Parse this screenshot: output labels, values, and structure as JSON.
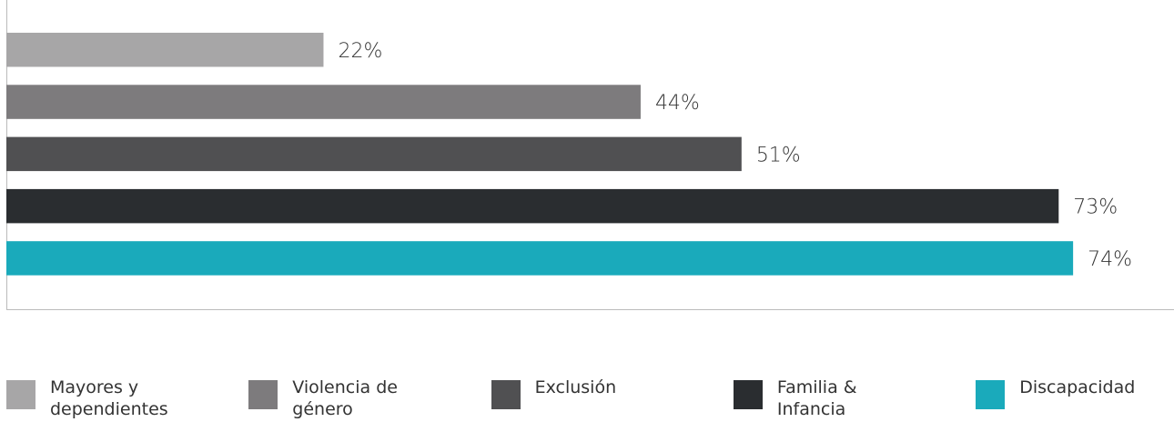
{
  "chart_data": {
    "type": "bar",
    "orientation": "horizontal",
    "categories": [
      "Mayores y dependientes",
      "Violencia de género",
      "Exclusión",
      "Familia & Infancia",
      "Discapacidad"
    ],
    "values": [
      22,
      44,
      51,
      73,
      74
    ],
    "value_labels": [
      "22%",
      "44%",
      "51%",
      "73%",
      "74%"
    ],
    "colors": [
      "#a7a6a7",
      "#7d7b7d",
      "#505052",
      "#2a2d30",
      "#1aaabb"
    ],
    "xlim": [
      0,
      81
    ]
  }
}
